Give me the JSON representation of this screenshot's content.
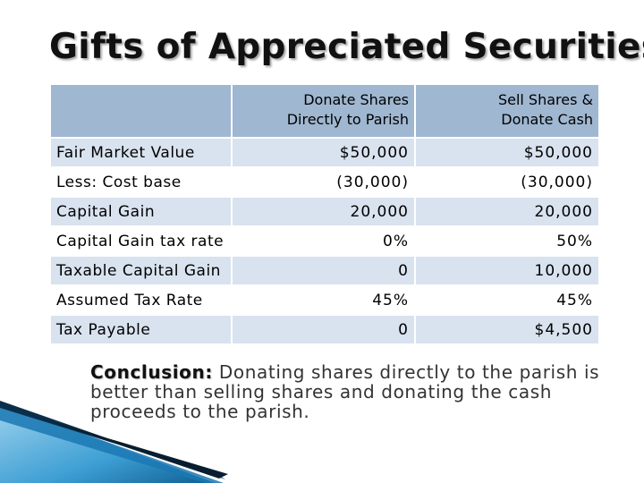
{
  "slide": {
    "title": "Gifts of Appreciated Securities"
  },
  "table": {
    "headers": [
      "",
      "Donate Shares Directly to Parish",
      "Sell Shares & Donate Cash"
    ],
    "header_lines": {
      "col1_line1": "Donate Shares",
      "col1_line2": "Directly to Parish",
      "col2_line1": "Sell Shares &",
      "col2_line2": "Donate Cash"
    },
    "rows": [
      {
        "label": "Fair Market Value",
        "v1": "$50,000",
        "v2": "$50,000"
      },
      {
        "label": "Less: Cost base",
        "v1": "(30,000)",
        "v2": "(30,000)"
      },
      {
        "label": "Capital Gain",
        "v1": "20,000",
        "v2": "20,000"
      },
      {
        "label": "Capital Gain tax rate",
        "v1": "0%",
        "v2": "50%"
      },
      {
        "label": "Taxable Capital Gain",
        "v1": "0",
        "v2": "10,000"
      },
      {
        "label": "Assumed Tax Rate",
        "v1": "45%",
        "v2": "45%"
      },
      {
        "label": "Tax Payable",
        "v1": "0",
        "v2": "$4,500"
      }
    ]
  },
  "conclusion": {
    "lead": "Conclusion:",
    "text": " Donating shares directly to the parish is better than selling shares and donating the cash proceeds to the parish."
  },
  "colors": {
    "header_bg": "#9fb7d1",
    "row_shade": "#d9e3ef",
    "accent_dark": "#0b3a5c",
    "accent_light": "#4aa8d8"
  }
}
